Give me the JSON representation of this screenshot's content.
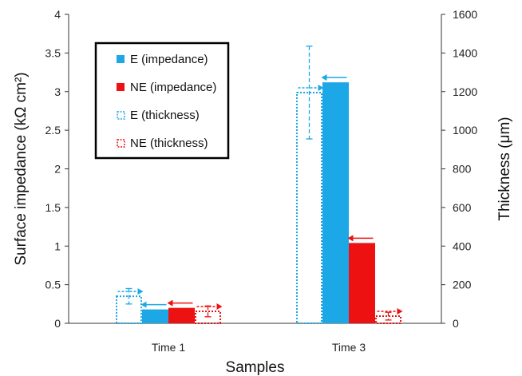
{
  "chart_data": {
    "type": "bar",
    "categories": [
      "Time 1",
      "Time 3"
    ],
    "xlabel": "Samples",
    "ylabel": "Surface impedance (kΩ cm²)",
    "y2label": "Thickness (μm)",
    "ylim": [
      0,
      4
    ],
    "y2lim": [
      0,
      1600
    ],
    "yticks": [
      "0",
      "0.5",
      "1",
      "1.5",
      "2",
      "2.5",
      "3",
      "3.5",
      "4"
    ],
    "y2ticks": [
      "0",
      "200",
      "400",
      "600",
      "800",
      "1000",
      "1200",
      "1400",
      "1600"
    ],
    "grid": false,
    "legend_position": "top-left",
    "series": [
      {
        "name": "E (thickness)",
        "axis": "right",
        "style": "dotted",
        "color": "#1ca7e6",
        "values": [
          140,
          1195
        ],
        "errors": [
          40,
          240
        ],
        "arrow": "right"
      },
      {
        "name": "E (impedance)",
        "axis": "left",
        "style": "solid",
        "color": "#1ca7e6",
        "values": [
          0.18,
          3.12
        ],
        "arrow": "left"
      },
      {
        "name": "NE (impedance)",
        "axis": "left",
        "style": "solid",
        "color": "#ee1111",
        "values": [
          0.2,
          1.04
        ],
        "arrow": "left"
      },
      {
        "name": "NE (thickness)",
        "axis": "right",
        "style": "dotted",
        "color": "#ee1111",
        "values": [
          62,
          37
        ],
        "errors": [
          28,
          20
        ],
        "arrow": "right"
      }
    ],
    "legend_order": [
      1,
      2,
      0,
      3
    ]
  }
}
